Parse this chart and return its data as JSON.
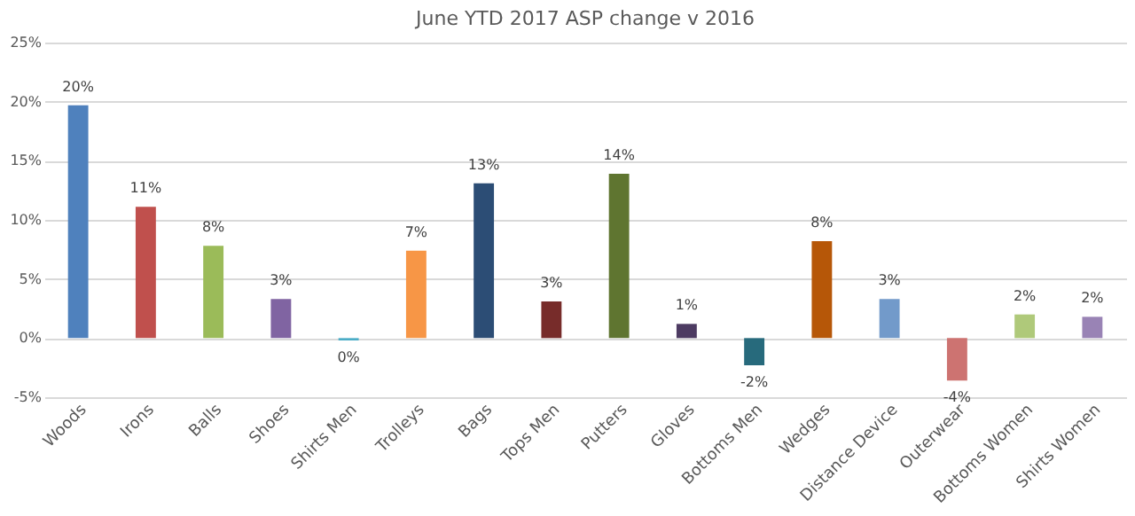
{
  "chart_data": {
    "type": "bar",
    "title": "June YTD 2017 ASP change v 2016",
    "categories": [
      "Woods",
      "Irons",
      "Balls",
      "Shoes",
      "Shirts Men",
      "Trolleys",
      "Bags",
      "Tops Men",
      "Putters",
      "Gloves",
      "Bottoms Men",
      "Wedges",
      "Distance Device",
      "Outerwear",
      "Bottoms Women",
      "Shirts Women"
    ],
    "values": [
      19.7,
      11.1,
      7.8,
      3.3,
      -0.2,
      7.4,
      13.1,
      3.1,
      13.9,
      1.2,
      -2.3,
      8.2,
      3.3,
      -3.6,
      2.0,
      1.8
    ],
    "value_labels": [
      "20%",
      "11%",
      "8%",
      "3%",
      "0%",
      "7%",
      "13%",
      "3%",
      "14%",
      "1%",
      "-2%",
      "8%",
      "3%",
      "-4%",
      "2%",
      "2%"
    ],
    "colors": [
      "#4f81bd",
      "#c0504d",
      "#9bbb59",
      "#8064a2",
      "#4bacc6",
      "#f79646",
      "#2c4d75",
      "#772c2a",
      "#5f7530",
      "#4d3b62",
      "#276a7c",
      "#b65708",
      "#729aca",
      "#cd7371",
      "#afc97a",
      "#9983b5"
    ],
    "ylim": [
      -5,
      25
    ],
    "yticks": [
      {
        "value": -5,
        "label": "-5%"
      },
      {
        "value": 0,
        "label": "0%"
      },
      {
        "value": 5,
        "label": "5%"
      },
      {
        "value": 10,
        "label": "10%"
      },
      {
        "value": 15,
        "label": "15%"
      },
      {
        "value": 20,
        "label": "20%"
      },
      {
        "value": 25,
        "label": "25%"
      }
    ],
    "grid": "y",
    "legend": false
  }
}
